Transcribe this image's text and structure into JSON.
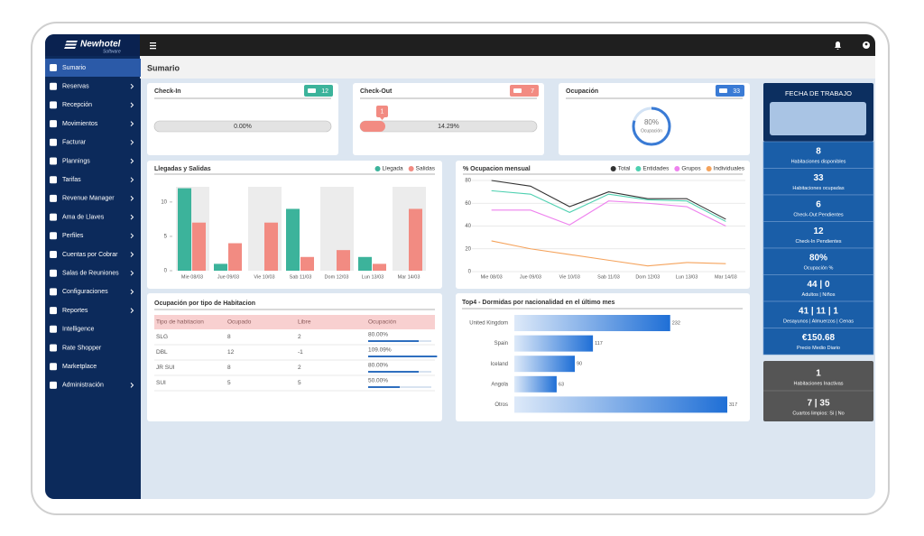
{
  "app": {
    "logo": "Newhotel",
    "logo_sub": "Software",
    "page_title": "Sumario"
  },
  "sidebar": {
    "items": [
      {
        "label": "Sumario",
        "active": true,
        "submenu": false
      },
      {
        "label": "Reservas",
        "active": false,
        "submenu": true
      },
      {
        "label": "Recepción",
        "active": false,
        "submenu": true
      },
      {
        "label": "Movimientos",
        "active": false,
        "submenu": true
      },
      {
        "label": "Facturar",
        "active": false,
        "submenu": true
      },
      {
        "label": "Plannings",
        "active": false,
        "submenu": true
      },
      {
        "label": "Tarifas",
        "active": false,
        "submenu": true
      },
      {
        "label": "Revenue Manager",
        "active": false,
        "submenu": true
      },
      {
        "label": "Ama de Llaves",
        "active": false,
        "submenu": true
      },
      {
        "label": "Perfiles",
        "active": false,
        "submenu": true
      },
      {
        "label": "Cuentas por Cobrar",
        "active": false,
        "submenu": true
      },
      {
        "label": "Salas de Reuniones",
        "active": false,
        "submenu": true
      },
      {
        "label": "Configuraciones",
        "active": false,
        "submenu": true
      },
      {
        "label": "Reportes",
        "active": false,
        "submenu": true
      },
      {
        "label": "Intelligence",
        "active": false,
        "submenu": false
      },
      {
        "label": "Rate Shopper",
        "active": false,
        "submenu": false
      },
      {
        "label": "Marketplace",
        "active": false,
        "submenu": false
      },
      {
        "label": "Administración",
        "active": false,
        "submenu": true
      }
    ]
  },
  "cards": [
    {
      "title": "Check-In",
      "badge": 12,
      "color": "#3cb39b",
      "progress": "0.00%"
    },
    {
      "title": "Check-Out",
      "badge": 7,
      "color": "#f28b82",
      "progress": "14.29%",
      "tooltip": "1"
    },
    {
      "title": "Ocupación",
      "badge": 33,
      "color": "#3a7bd5",
      "gauge": "80%",
      "gauge_label": "Ocupación"
    }
  ],
  "summary_panel": {
    "title": "FECHA DE TRABAJO",
    "stats": [
      {
        "value": "8",
        "label": "Habitaciones disponibles"
      },
      {
        "value": "33",
        "label": "Habitaciones ocupadas"
      },
      {
        "value": "6",
        "label": "Check-Out Pendientes"
      },
      {
        "value": "12",
        "label": "Check-In Pendientes"
      },
      {
        "value": "80%",
        "label": "Ocupación %"
      },
      {
        "value": "44 | 0",
        "label": "Adultos | Niños"
      },
      {
        "value": "41 | 11 | 1",
        "label": "Desayunos | Almuerzos | Cenas"
      },
      {
        "value": "€150.68",
        "label": "Precio Medio Diario"
      }
    ],
    "inactive": [
      {
        "value": "1",
        "label": "Habitaciones Inactivas"
      },
      {
        "value": "7 | 35",
        "label": "Cuartos limpios: Si | No"
      }
    ]
  },
  "table": {
    "title": "Ocupación por tipo de Habitacion",
    "columns": [
      "Tipo de habitacion",
      "Ocupado",
      "Libre",
      "Ocupación"
    ],
    "rows": [
      [
        "SLG",
        "8",
        "2",
        "80.00%"
      ],
      [
        "DBL",
        "12",
        "-1",
        "109.09%"
      ],
      [
        "JR SUI",
        "8",
        "2",
        "80.00%"
      ],
      [
        "SUI",
        "5",
        "5",
        "50.00%"
      ]
    ]
  },
  "chart_data": [
    {
      "type": "bar",
      "title": "Llegadas y Salidas",
      "categories": [
        "Mie 08/03",
        "Jue 09/03",
        "Vie 10/03",
        "Sab 11/03",
        "Dom 12/03",
        "Lun 13/03",
        "Mar 14/03"
      ],
      "series": [
        {
          "name": "Llegada",
          "color": "#3cb39b",
          "values": [
            12,
            1,
            0,
            9,
            0,
            2,
            0
          ]
        },
        {
          "name": "Salidas",
          "color": "#f28b82",
          "values": [
            7,
            4,
            7,
            2,
            3,
            1,
            9
          ]
        }
      ],
      "ylim": [
        0,
        13
      ],
      "yticks": [
        0,
        5,
        10
      ]
    },
    {
      "type": "line",
      "title": "% Ocupacion mensual",
      "categories": [
        "Mie 08/03",
        "Jue 09/03",
        "Vie 10/03",
        "Sab 11/03",
        "Dom 12/03",
        "Lun 13/03",
        "Mar 14/03"
      ],
      "series": [
        {
          "name": "Total",
          "color": "#333333",
          "values": [
            80,
            75,
            57,
            70,
            64,
            64,
            46
          ]
        },
        {
          "name": "Entidades",
          "color": "#4dd0b0",
          "values": [
            71,
            68,
            52,
            68,
            63,
            62,
            44
          ]
        },
        {
          "name": "Grupos",
          "color": "#ee82ee",
          "values": [
            54,
            54,
            41,
            62,
            60,
            57,
            40
          ]
        },
        {
          "name": "Individuales",
          "color": "#f5a35c",
          "values": [
            27,
            20,
            15,
            10,
            5,
            8,
            7
          ]
        }
      ],
      "ylim": [
        0,
        80
      ],
      "yticks": [
        0,
        20,
        40,
        60,
        80
      ],
      "grid": true
    },
    {
      "type": "hbar",
      "title": "Top4 - Dormidas por nacionalidad en el último mes",
      "categories": [
        "United Kingdom",
        "Spain",
        "Iceland",
        "Angola",
        "Otros"
      ],
      "values": [
        232,
        117,
        90,
        63,
        317
      ],
      "color": "#1f6fd6"
    }
  ]
}
